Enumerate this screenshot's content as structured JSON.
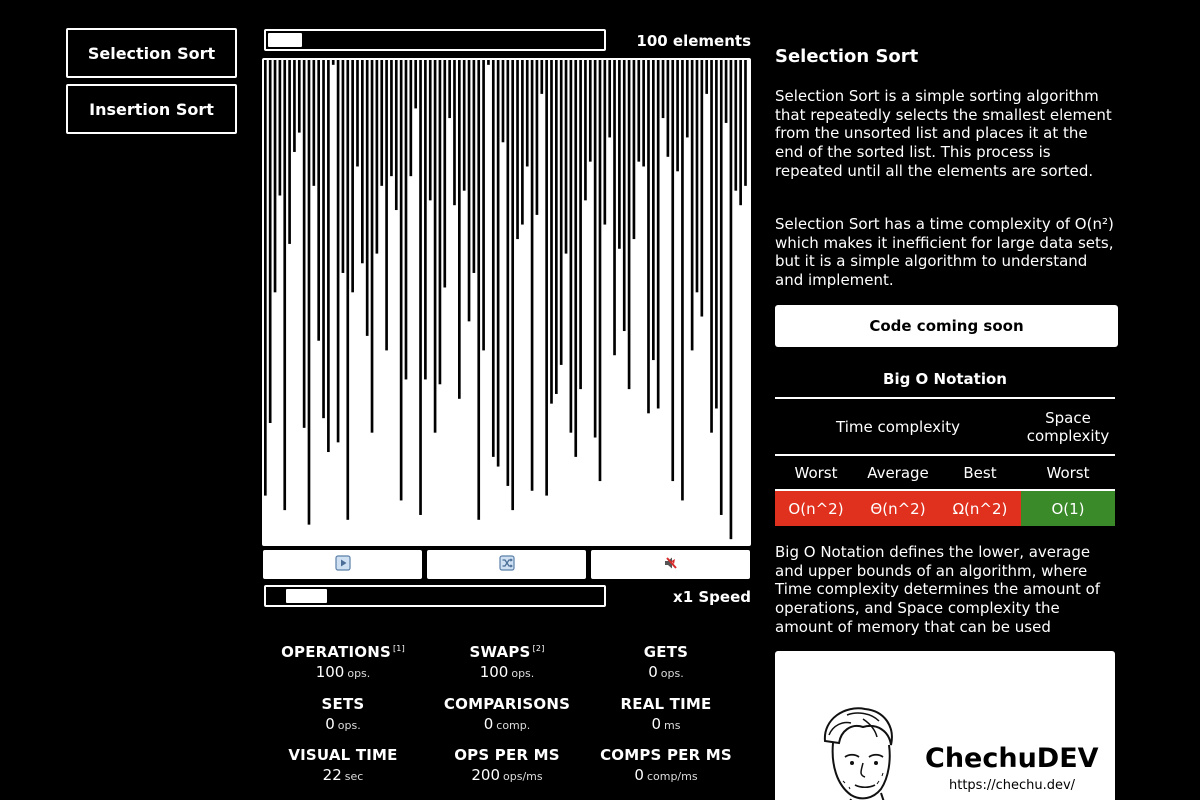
{
  "nav": {
    "items": [
      {
        "label": "Selection Sort"
      },
      {
        "label": "Insertion Sort"
      }
    ]
  },
  "elements_slider": {
    "label": "100 elements",
    "value_fraction": 0.1
  },
  "speed_slider": {
    "label": "x1 Speed",
    "value_fraction": 0.12
  },
  "bars": [
    0.1,
    0.25,
    0.52,
    0.72,
    0.07,
    0.62,
    0.81,
    0.85,
    0.24,
    0.04,
    0.74,
    0.42,
    0.26,
    0.19,
    0.99,
    0.21,
    0.56,
    0.05,
    0.52,
    0.78,
    0.58,
    0.43,
    0.23,
    0.6,
    0.74,
    0.4,
    0.76,
    0.69,
    0.09,
    0.34,
    0.76,
    0.9,
    0.06,
    0.34,
    0.71,
    0.23,
    0.33,
    0.53,
    0.88,
    0.7,
    0.3,
    0.73,
    0.46,
    0.56,
    0.05,
    0.4,
    0.99,
    0.18,
    0.16,
    0.83,
    0.12,
    0.07,
    0.63,
    0.66,
    0.78,
    0.11,
    0.68,
    0.93,
    0.1,
    0.29,
    0.31,
    0.37,
    0.6,
    0.23,
    0.18,
    0.32,
    0.71,
    0.79,
    0.22,
    0.13,
    0.66,
    0.84,
    0.39,
    0.61,
    0.44,
    0.32,
    0.63,
    0.79,
    0.78,
    0.27,
    0.38,
    0.28,
    0.88,
    0.8,
    0.13,
    0.77,
    0.09,
    0.84,
    0.4,
    0.52,
    0.47,
    0.93,
    0.23,
    0.28,
    0.06,
    0.87,
    0.01,
    0.73,
    0.7,
    0.74
  ],
  "controls": {
    "play_icon": "play-icon",
    "shuffle_icon": "shuffle-icon",
    "sound_icon": "mute-icon"
  },
  "stats": [
    {
      "name": "OPERATIONS",
      "note": "[1]",
      "value": "100",
      "unit": "ops."
    },
    {
      "name": "SWAPS",
      "note": "[2]",
      "value": "100",
      "unit": "ops."
    },
    {
      "name": "GETS",
      "note": "",
      "value": "0",
      "unit": "ops."
    },
    {
      "name": "SETS",
      "note": "",
      "value": "0",
      "unit": "ops."
    },
    {
      "name": "COMPARISONS",
      "note": "",
      "value": "0",
      "unit": "comp."
    },
    {
      "name": "REAL TIME",
      "note": "",
      "value": "0",
      "unit": "ms"
    },
    {
      "name": "VISUAL TIME",
      "note": "",
      "value": "22",
      "unit": "sec"
    },
    {
      "name": "OPS PER MS",
      "note": "",
      "value": "200",
      "unit": "ops/ms"
    },
    {
      "name": "COMPS PER MS",
      "note": "",
      "value": "0",
      "unit": "comp/ms"
    }
  ],
  "info": {
    "title": "Selection Sort",
    "para1": "Selection Sort is a simple sorting algorithm that repeatedly selects the smallest element from the unsorted list and places it at the end of the sorted list. This process is repeated until all the elements are sorted.",
    "para2": "Selection Sort has a time complexity of O(n²) which makes it inefficient for large data sets, but it is a simple algorithm to understand and implement.",
    "code_button": "Code coming soon",
    "bigo_title": "Big O Notation",
    "time_complexity": "Time complexity",
    "space_complexity": "Space complexity",
    "cols": [
      "Worst",
      "Average",
      "Best",
      "Worst"
    ],
    "values": [
      "O(n^2)",
      "Θ(n^2)",
      "Ω(n^2)",
      "O(1)"
    ],
    "colors": {
      "red": "#e0301e",
      "green": "#3a8a2a"
    },
    "para3": "Big O Notation defines the lower, average and upper bounds of an algorithm, where Time complexity determines the amount of operations, and Space complexity the amount of memory that can be used",
    "brand": "ChechuDEV",
    "url": "https://chechu.dev/"
  }
}
